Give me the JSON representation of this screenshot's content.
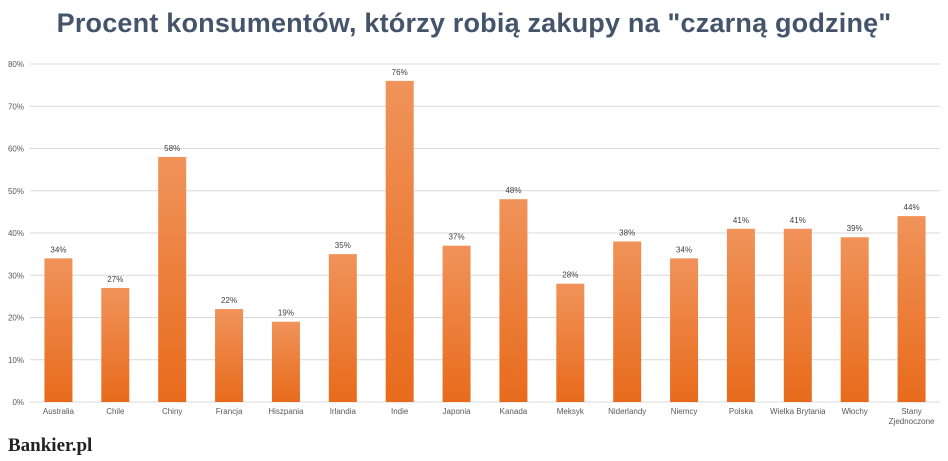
{
  "chart_data": {
    "type": "bar",
    "title": "Procent konsumentów, którzy robią zakupy na \"czarną godzinę\"",
    "xlabel": "",
    "ylabel": "",
    "ylim": [
      0,
      80
    ],
    "y_ticks": [
      "0%",
      "10%",
      "20%",
      "30%",
      "40%",
      "50%",
      "60%",
      "70%",
      "80%"
    ],
    "grid": true,
    "legend": "none",
    "categories": [
      "Australia",
      "Chile",
      "Chiny",
      "Francja",
      "Hiszpania",
      "Irlandia",
      "Indie",
      "Japonia",
      "Kanada",
      "Meksyk",
      "Niderlandy",
      "Niemcy",
      "Polska",
      "Wielka Brytania",
      "Włochy",
      "Stany Zjednoczone"
    ],
    "values": [
      34,
      27,
      58,
      22,
      19,
      35,
      76,
      37,
      48,
      28,
      38,
      34,
      41,
      41,
      39,
      44
    ],
    "data_labels": [
      "34%",
      "27%",
      "58%",
      "22%",
      "19%",
      "35%",
      "76%",
      "37%",
      "48%",
      "28%",
      "38%",
      "34%",
      "41%",
      "41%",
      "39%",
      "44%"
    ],
    "colors": {
      "bar_top": "#f0935a",
      "bar_bottom": "#e86b1c",
      "title": "#44546a",
      "grid": "#d9d9d9"
    }
  },
  "logo": {
    "text": "Bankier.pl"
  }
}
